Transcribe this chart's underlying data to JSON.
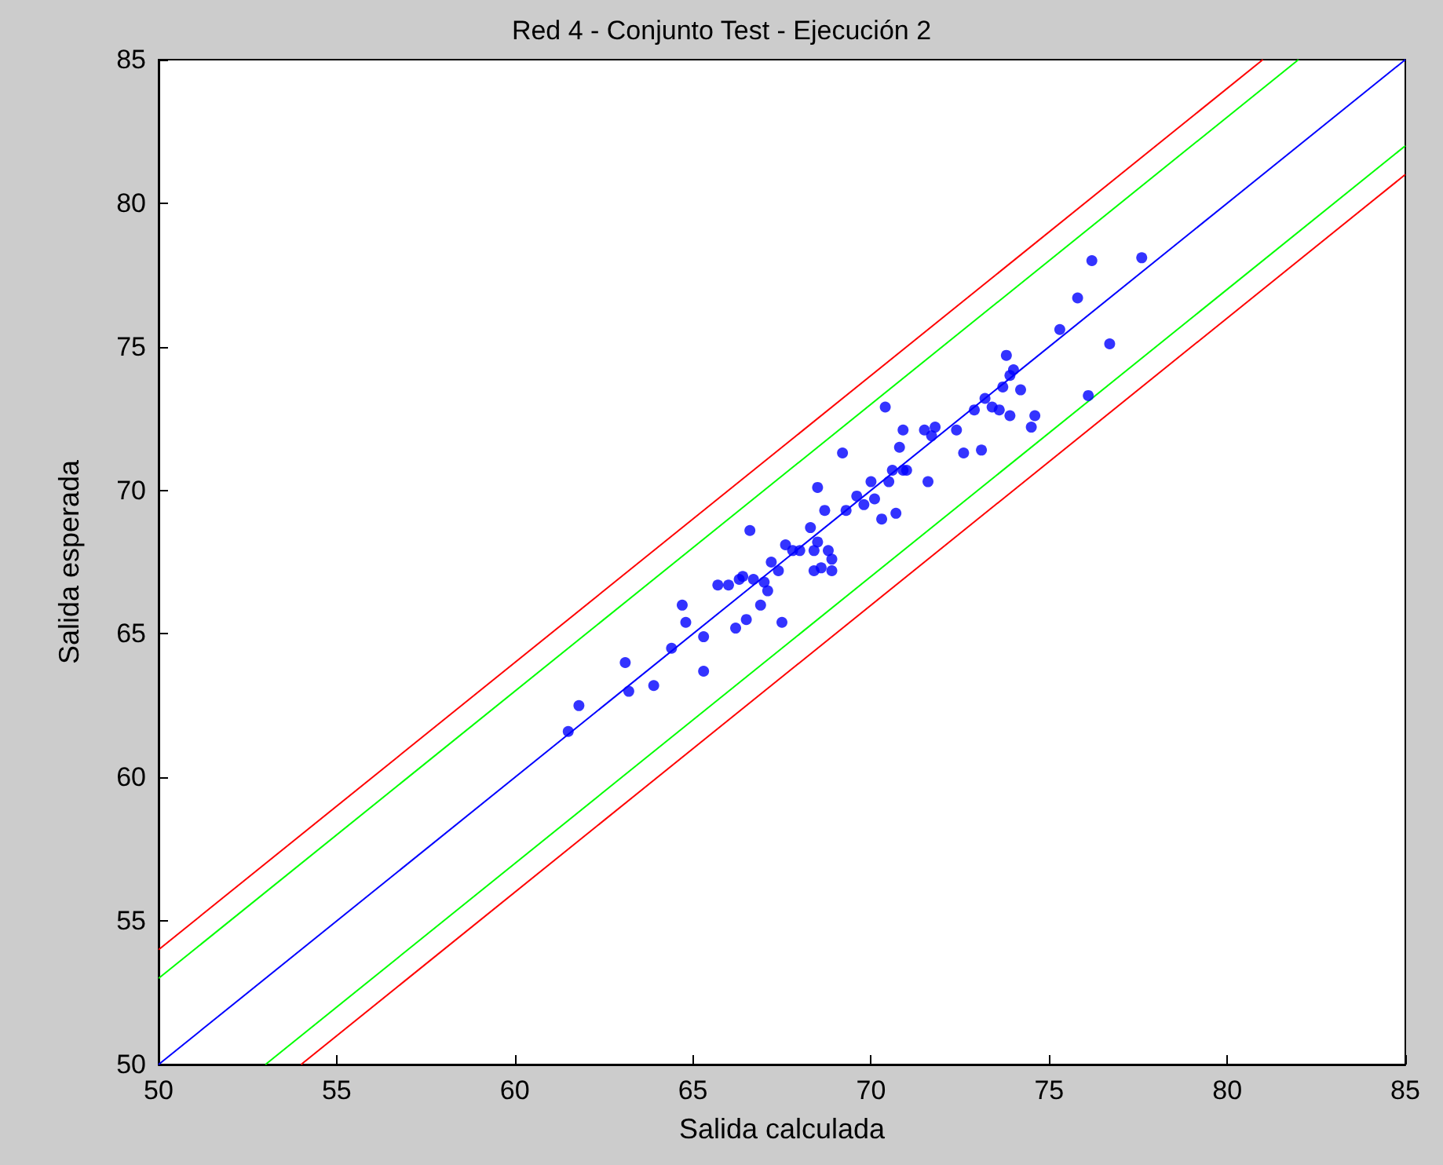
{
  "chart_data": {
    "type": "scatter",
    "title": "Red 4 - Conjunto Test - Ejecución 2",
    "xlabel": "Salida calculada",
    "ylabel": "Salida esperada",
    "xlim": [
      50,
      85
    ],
    "ylim": [
      50,
      85
    ],
    "xticks": [
      50,
      55,
      60,
      65,
      70,
      75,
      80,
      85
    ],
    "yticks": [
      50,
      55,
      60,
      65,
      70,
      75,
      80,
      85
    ],
    "grid": false,
    "series": [
      {
        "type": "line",
        "color": "#0000ff",
        "marker": "none",
        "line_style": "solid",
        "x": [
          50,
          85
        ],
        "values": [
          50,
          85
        ]
      },
      {
        "type": "line",
        "color": "#00ff00",
        "marker": "none",
        "line_style": "solid",
        "x": [
          50,
          82
        ],
        "values": [
          53,
          85
        ]
      },
      {
        "type": "line",
        "color": "#00ff00",
        "marker": "none",
        "line_style": "solid",
        "x": [
          53,
          85
        ],
        "values": [
          50,
          82
        ]
      },
      {
        "type": "line",
        "color": "#ff0000",
        "marker": "none",
        "line_style": "solid",
        "x": [
          50,
          81
        ],
        "values": [
          54,
          85
        ]
      },
      {
        "type": "line",
        "color": "#ff0000",
        "marker": "none",
        "line_style": "solid",
        "x": [
          54,
          85
        ],
        "values": [
          50,
          81
        ]
      },
      {
        "color": "#0000ff",
        "marker": "circle",
        "x": [
          61.5,
          61.8,
          63.1,
          63.2,
          63.9,
          64.4,
          64.7,
          64.8,
          65.3,
          65.3,
          65.7,
          66.0,
          66.2,
          66.3,
          66.4,
          66.5,
          66.6,
          66.7,
          66.9,
          67.0,
          67.1,
          67.2,
          67.4,
          67.5,
          67.6,
          67.8,
          68.0,
          68.3,
          68.4,
          68.4,
          68.5,
          68.5,
          68.6,
          68.7,
          68.8,
          68.9,
          68.9,
          69.2,
          69.3,
          69.6,
          69.8,
          70.0,
          70.1,
          70.3,
          70.4,
          70.5,
          70.6,
          70.7,
          70.8,
          70.9,
          70.9,
          71.0,
          71.5,
          71.6,
          71.7,
          71.8,
          72.4,
          72.6,
          72.9,
          73.1,
          73.2,
          73.4,
          73.6,
          73.7,
          73.8,
          73.9,
          73.9,
          74.0,
          74.2,
          74.5,
          74.6,
          75.3,
          75.8,
          76.1,
          76.2,
          76.7,
          77.6
        ],
        "values": [
          61.6,
          62.5,
          64.0,
          63.0,
          63.2,
          64.5,
          66.0,
          65.4,
          64.9,
          63.7,
          66.7,
          66.7,
          65.2,
          66.9,
          67.0,
          65.5,
          68.6,
          66.9,
          66.0,
          66.8,
          66.5,
          67.5,
          67.2,
          65.4,
          68.1,
          67.9,
          67.9,
          68.7,
          67.2,
          67.9,
          70.1,
          68.2,
          67.3,
          69.3,
          67.9,
          67.6,
          67.2,
          71.3,
          69.3,
          69.8,
          69.5,
          70.3,
          69.7,
          69.0,
          72.9,
          70.3,
          70.7,
          69.2,
          71.5,
          70.7,
          72.1,
          70.7,
          72.1,
          70.3,
          71.9,
          72.2,
          72.1,
          71.3,
          72.8,
          71.4,
          73.2,
          72.9,
          72.8,
          73.6,
          74.7,
          72.6,
          74.0,
          74.2,
          73.5,
          72.2,
          72.6,
          75.6,
          76.7,
          73.3,
          78.0,
          75.1,
          78.1
        ]
      }
    ]
  }
}
